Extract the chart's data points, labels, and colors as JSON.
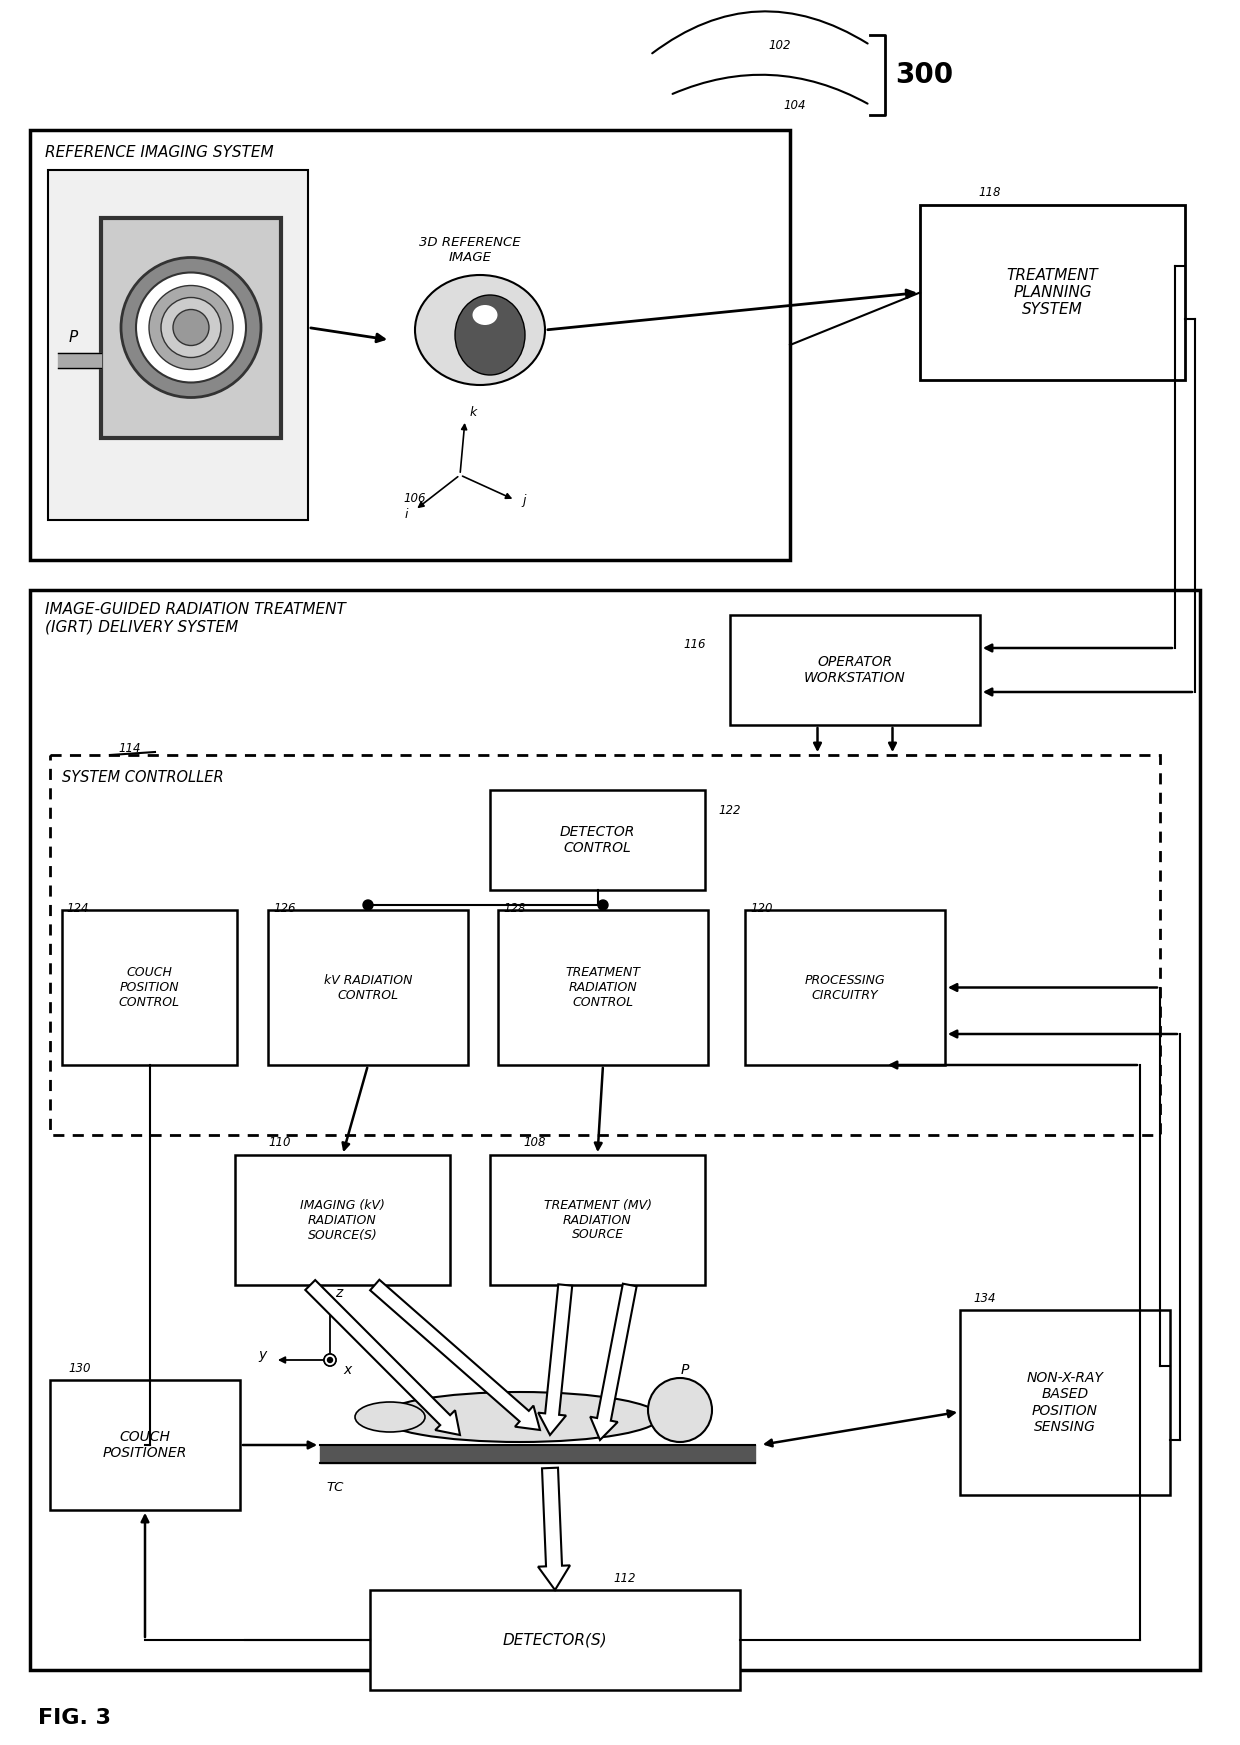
{
  "fig_label": "FIG. 3",
  "background_color": "#ffffff",
  "box_texts": {
    "treatment_planning": "TREATMENT\nPLANNING\nSYSTEM",
    "operator_workstation": "OPERATOR\nWORKSTATION",
    "detector_control": "DETECTOR\nCONTROL",
    "couch_position_control": "COUCH\nPOSITION\nCONTROL",
    "kv_radiation_control": "kV RADIATION\nCONTROL",
    "treatment_radiation_control": "TREATMENT\nRADIATION\nCONTROL",
    "processing_circuitry": "PROCESSING\nCIRCUITRY",
    "imaging_kv_source": "IMAGING (kV)\nRADIATION\nSOURCE(S)",
    "treatment_mv_source": "TREATMENT (MV)\nRADIATION\nSOURCE",
    "couch_positioner": "COUCH\nPOSITIONER",
    "non_xray_sensing": "NON-X-RAY\nBASED\nPOSITION\nSENSING",
    "detectors": "DETECTOR(S)"
  },
  "section_labels": {
    "reference_imaging": "REFERENCE IMAGING SYSTEM",
    "igrt_delivery": "IMAGE-GUIDED RADIATION TREATMENT\n(IGRT) DELIVERY SYSTEM",
    "system_controller": "SYSTEM CONTROLLER"
  }
}
